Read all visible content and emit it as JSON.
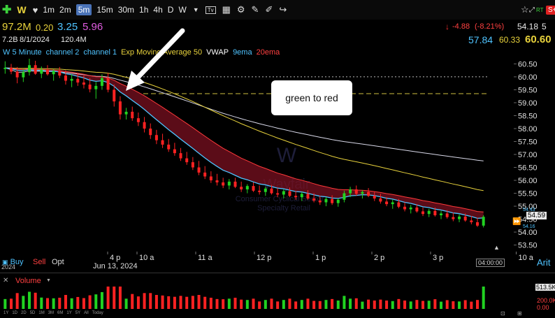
{
  "toolbar": {
    "symbol": "W",
    "timeframes": [
      "1m",
      "2m",
      "5m",
      "15m",
      "30m",
      "1h",
      "4h",
      "D",
      "W"
    ],
    "selected": "5m",
    "icons": [
      "plus-icon",
      "tv-icon",
      "layout-icon",
      "gear-icon",
      "pencil-icon",
      "crosshair-icon",
      "share-icon"
    ],
    "star": "☆",
    "rt": "RT",
    "alert": "S+"
  },
  "quote": {
    "volume": "97.2M",
    "v2": "0.20",
    "v3": "3.25",
    "v4": "5.96",
    "cap": "7.2B",
    "date": "8/1/2024",
    "v5": "120.4M",
    "change": "-4.88",
    "change_pct": "(-8.21%)",
    "last": "54.18",
    "last_suffix": "5",
    "bid": "57.84",
    "mid": "60.33",
    "ask": "60.60"
  },
  "legend": {
    "items": [
      {
        "label": "W 5 Minute",
        "color": "#4fc3ff"
      },
      {
        "label": "channel 2",
        "color": "#4fc3ff"
      },
      {
        "label": "channel 1",
        "color": "#4fc3ff"
      },
      {
        "label": "Exp Moving Average 50",
        "color": "#e8d23c"
      },
      {
        "label": "VWAP",
        "color": "#ffffff"
      },
      {
        "label": "9ema",
        "color": "#4fc3ff"
      },
      {
        "label": "20ema",
        "color": "#ff4040"
      }
    ]
  },
  "annotation": {
    "text": "green to red"
  },
  "watermark": {
    "symbol": "W",
    "name": "Wayfair",
    "sector": "Consumer Cyclical Sector",
    "industry": "Specialty Retail"
  },
  "chart_data": {
    "type": "candlestick",
    "timeframe": "5 Minute",
    "y_ticks": [
      "60.50",
      "60.00",
      "59.50",
      "59.00",
      "58.50",
      "58.00",
      "57.50",
      "57.00",
      "56.50",
      "56.00",
      "55.50",
      "55.00",
      "54.50",
      "54.00",
      "53.50"
    ],
    "ylim": [
      53.3,
      60.7
    ],
    "x_ticks": [
      "4 p",
      "10 a",
      "11 a",
      "12 p",
      "1 p",
      "2 p",
      "3 p",
      "10 a"
    ],
    "date_label": "Jun 13, 2024",
    "time_label": "04:00:00",
    "last_price": "54.59",
    "price_tags": [
      "54.43",
      "54.16"
    ],
    "reference_lines": [
      60.0,
      59.35
    ],
    "candles": [
      [
        60.3,
        60.6,
        60.12,
        60.35
      ],
      [
        60.35,
        60.5,
        60.1,
        60.2
      ],
      [
        60.2,
        60.38,
        59.75,
        59.98
      ],
      [
        59.98,
        60.3,
        59.8,
        60.18
      ],
      [
        60.18,
        60.7,
        60.05,
        60.45
      ],
      [
        60.45,
        60.62,
        60.08,
        60.12
      ],
      [
        60.12,
        60.4,
        59.95,
        60.28
      ],
      [
        60.28,
        60.45,
        60.05,
        60.1
      ],
      [
        60.1,
        60.3,
        59.85,
        60.22
      ],
      [
        60.22,
        60.38,
        59.95,
        60.05
      ],
      [
        60.05,
        60.25,
        59.7,
        59.85
      ],
      [
        59.85,
        60.1,
        59.6,
        59.92
      ],
      [
        59.92,
        60.15,
        59.65,
        59.78
      ],
      [
        59.78,
        60.05,
        59.55,
        59.7
      ],
      [
        59.7,
        59.95,
        59.4,
        59.52
      ],
      [
        59.52,
        59.8,
        59.15,
        59.65
      ],
      [
        59.65,
        60.1,
        59.5,
        59.95
      ],
      [
        59.95,
        60.15,
        59.4,
        59.5
      ],
      [
        59.5,
        59.7,
        58.85,
        59.05
      ],
      [
        59.05,
        59.25,
        58.35,
        58.55
      ],
      [
        58.55,
        58.8,
        58.35,
        58.65
      ],
      [
        58.65,
        58.85,
        58.3,
        58.4
      ],
      [
        58.4,
        58.62,
        58.1,
        58.25
      ],
      [
        58.25,
        58.45,
        57.85,
        58.0
      ],
      [
        58.0,
        58.2,
        57.6,
        57.75
      ],
      [
        57.75,
        57.95,
        57.4,
        57.55
      ],
      [
        57.55,
        57.8,
        57.25,
        57.38
      ],
      [
        57.38,
        57.6,
        57.1,
        57.2
      ],
      [
        57.2,
        57.45,
        56.95,
        57.05
      ],
      [
        57.05,
        57.25,
        56.75,
        56.85
      ],
      [
        56.85,
        57.1,
        56.6,
        56.7
      ],
      [
        56.7,
        56.9,
        56.4,
        56.5
      ],
      [
        56.5,
        56.75,
        56.2,
        56.3
      ],
      [
        56.3,
        56.55,
        56.05,
        56.15
      ],
      [
        56.15,
        56.35,
        55.9,
        56.0
      ],
      [
        56.0,
        56.25,
        55.8,
        55.92
      ],
      [
        55.92,
        56.1,
        55.7,
        55.8
      ],
      [
        55.8,
        56.05,
        55.65,
        55.95
      ],
      [
        55.95,
        56.1,
        55.7,
        55.75
      ],
      [
        55.75,
        55.95,
        55.55,
        55.65
      ],
      [
        55.65,
        55.85,
        55.5,
        55.78
      ],
      [
        55.78,
        55.92,
        55.55,
        55.6
      ],
      [
        55.6,
        55.8,
        55.45,
        55.55
      ],
      [
        55.55,
        55.75,
        55.4,
        55.68
      ],
      [
        55.68,
        55.82,
        55.45,
        55.5
      ],
      [
        55.5,
        55.7,
        55.35,
        55.45
      ],
      [
        55.45,
        55.65,
        55.3,
        55.58
      ],
      [
        55.58,
        55.72,
        55.35,
        55.4
      ],
      [
        55.4,
        55.6,
        55.25,
        55.35
      ],
      [
        55.35,
        55.55,
        55.2,
        55.48
      ],
      [
        55.48,
        55.62,
        55.25,
        55.3
      ],
      [
        55.3,
        55.5,
        55.15,
        55.22
      ],
      [
        55.22,
        55.4,
        55.05,
        55.15
      ],
      [
        55.15,
        55.35,
        55.0,
        55.28
      ],
      [
        55.28,
        55.42,
        55.05,
        55.12
      ],
      [
        55.12,
        55.3,
        54.98,
        55.25
      ],
      [
        55.25,
        55.6,
        55.15,
        55.5
      ],
      [
        55.5,
        55.75,
        55.35,
        55.65
      ],
      [
        55.65,
        55.8,
        55.4,
        55.48
      ],
      [
        55.48,
        55.62,
        55.3,
        55.55
      ],
      [
        55.55,
        55.7,
        55.35,
        55.4
      ],
      [
        55.4,
        55.55,
        55.2,
        55.3
      ],
      [
        55.3,
        55.48,
        55.1,
        55.18
      ],
      [
        55.18,
        55.35,
        55.0,
        55.08
      ],
      [
        55.08,
        55.25,
        54.9,
        55.15
      ],
      [
        55.15,
        55.28,
        54.92,
        54.98
      ],
      [
        54.98,
        55.15,
        54.8,
        54.88
      ],
      [
        54.88,
        55.05,
        54.72,
        54.95
      ],
      [
        54.95,
        55.08,
        54.75,
        54.8
      ],
      [
        54.8,
        54.95,
        54.62,
        54.7
      ],
      [
        54.7,
        54.9,
        54.58,
        54.82
      ],
      [
        54.82,
        54.95,
        54.6,
        54.65
      ],
      [
        54.65,
        54.82,
        54.5,
        54.72
      ],
      [
        54.72,
        54.85,
        54.52,
        54.58
      ],
      [
        54.58,
        54.75,
        54.42,
        54.5
      ],
      [
        54.5,
        54.68,
        54.38,
        54.6
      ],
      [
        54.6,
        54.72,
        54.4,
        54.45
      ],
      [
        54.45,
        54.62,
        54.3,
        54.38
      ],
      [
        54.38,
        54.55,
        54.2,
        54.25
      ],
      [
        54.25,
        54.65,
        54.18,
        54.59
      ]
    ],
    "volume_ticks": [
      "513.5K",
      "200.0K",
      "0.00"
    ],
    "volume_label": "Volume"
  },
  "footer": {
    "buy": "Buy",
    "sell": "Sell",
    "opt": "Opt",
    "y2024": "2024",
    "right_label": "Arit",
    "range_buttons": [
      "1Y",
      "1D",
      "2D",
      "5D",
      "1M",
      "3M",
      "6M",
      "1Y",
      "5Y",
      "All",
      "Today"
    ]
  }
}
